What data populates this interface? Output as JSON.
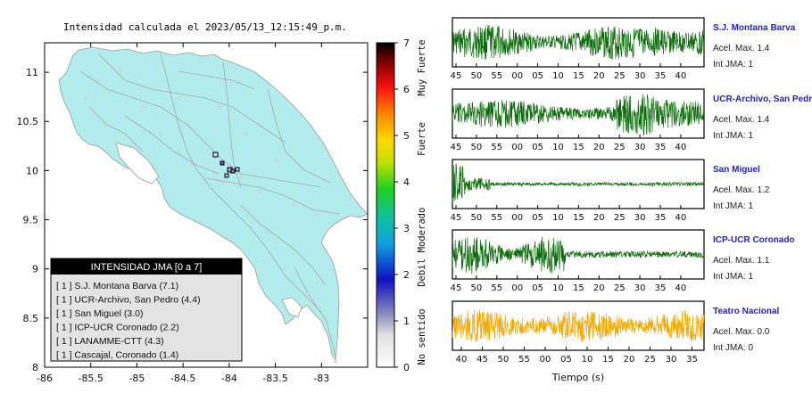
{
  "map": {
    "title": "Intensidad calculada el 2023/05/13_12:15:49_p.m.",
    "x_ticks": [
      "-86",
      "-85.5",
      "-85",
      "-84.5",
      "-84",
      "-83.5",
      "-83"
    ],
    "y_ticks": [
      "11",
      "10.5",
      "10",
      "9.5",
      "9",
      "8.5",
      "8"
    ],
    "land_color": "#b3ecec",
    "legend_title": "INTENSIDAD JMA [0 a 7]",
    "legend_items": [
      "[ 1 ]  S.J. Montana Barva (7.1)",
      "[ 1 ]  UCR-Archivo, San Pedro (4.4)",
      "[ 1 ]  San Miguel (3.0)",
      "[ 1 ]  ICP-UCR Coronado (2.2)",
      "[ 1 ]  LANAMME-CTT (4.3)",
      "[ 1 ]  Cascajal, Coronado (1.4)"
    ]
  },
  "colorbar": {
    "ticks": [
      "7",
      "6",
      "5",
      "4",
      "3",
      "2",
      "1",
      "0"
    ],
    "labels": [
      "Muy Fuerte",
      "Fuerte",
      "Moderado",
      "Debil",
      "No sentido"
    ]
  },
  "seismograms": {
    "xlabel": "Tiempo (s)",
    "panels": [
      {
        "title": "S.J. Montana Barva",
        "acel": "Acel. Max. 1.4",
        "int": "Int JMA: 1",
        "color": "#0a6b0a",
        "ticks": [
          "45",
          "50",
          "55",
          "00",
          "05",
          "10",
          "15",
          "20",
          "25",
          "30",
          "35",
          "40"
        ]
      },
      {
        "title": "UCR-Archivo, San Pedro",
        "acel": "Acel. Max. 1.4",
        "int": "Int JMA: 1",
        "color": "#0a6b0a",
        "ticks": [
          "45",
          "50",
          "55",
          "00",
          "05",
          "10",
          "15",
          "20",
          "25",
          "30",
          "35",
          "40"
        ]
      },
      {
        "title": "San Miguel",
        "acel": "Acel. Max. 1.2",
        "int": "Int JMA: 1",
        "color": "#0a6b0a",
        "ticks": [
          "45",
          "50",
          "55",
          "00",
          "05",
          "10",
          "15",
          "20",
          "25",
          "30",
          "35",
          "40"
        ]
      },
      {
        "title": "ICP-UCR Coronado",
        "acel": "Acel. Max. 1.1",
        "int": "Int JMA: 1",
        "color": "#0a6b0a",
        "ticks": [
          "45",
          "50",
          "55",
          "00",
          "05",
          "10",
          "15",
          "20",
          "25",
          "30",
          "35",
          "40"
        ]
      },
      {
        "title": "Teatro Nacional",
        "acel": "Acel. Max. 0.0",
        "int": "Int JMA: 0",
        "color": "#f5a800",
        "ticks": [
          "40",
          "45",
          "50",
          "55",
          "00",
          "05",
          "10",
          "15",
          "20",
          "25",
          "30",
          "35"
        ]
      }
    ]
  },
  "chart_data": [
    {
      "type": "scatter",
      "title": "Intensidad calculada el 2023/05/13_12:15:49_p.m.",
      "xlim": [
        -86,
        -82.5
      ],
      "ylim": [
        8,
        11.3
      ],
      "stations": [
        {
          "name": "S.J. Montana Barva",
          "jma": 1
        },
        {
          "name": "UCR-Archivo, San Pedro",
          "jma": 1
        },
        {
          "name": "San Miguel",
          "jma": 1
        },
        {
          "name": "ICP-UCR Coronado",
          "jma": 1
        },
        {
          "name": "LANAMME-CTT",
          "jma": 1
        },
        {
          "name": "Cascajal, Coronado",
          "jma": 1
        }
      ],
      "colorbar_range": [
        0,
        7
      ]
    },
    {
      "type": "line",
      "xlabel": "Tiempo (s)",
      "series": [
        {
          "name": "S.J. Montana Barva",
          "acel_max": 1.4,
          "int_jma": 1
        },
        {
          "name": "UCR-Archivo, San Pedro",
          "acel_max": 1.4,
          "int_jma": 1
        },
        {
          "name": "San Miguel",
          "acel_max": 1.2,
          "int_jma": 1
        },
        {
          "name": "ICP-UCR Coronado",
          "acel_max": 1.1,
          "int_jma": 1
        },
        {
          "name": "Teatro Nacional",
          "acel_max": 0.0,
          "int_jma": 0
        }
      ]
    }
  ]
}
